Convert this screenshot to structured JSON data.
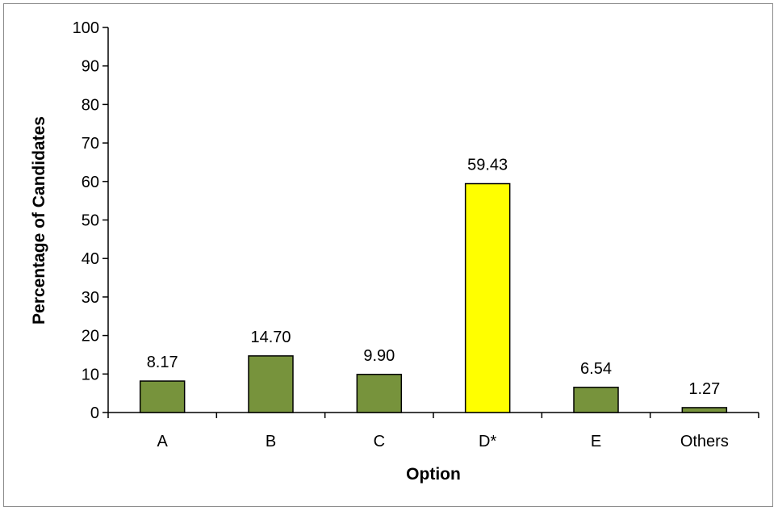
{
  "chart_data": {
    "type": "bar",
    "categories": [
      "A",
      "B",
      "C",
      "D*",
      "E",
      "Others"
    ],
    "values": [
      8.17,
      14.7,
      9.9,
      59.43,
      6.54,
      1.27
    ],
    "data_labels": [
      "8.17",
      "14.70",
      "9.90",
      "59.43",
      "6.54",
      "1.27"
    ],
    "bar_colors": [
      "#77933c",
      "#77933c",
      "#77933c",
      "#ffff00",
      "#77933c",
      "#77933c"
    ],
    "xlabel": "Option",
    "ylabel": "Percentage  of Candidates",
    "ylim": [
      0,
      100
    ],
    "yticks": [
      0,
      10,
      20,
      30,
      40,
      50,
      60,
      70,
      80,
      90,
      100
    ],
    "grid": false,
    "legend": "none"
  }
}
